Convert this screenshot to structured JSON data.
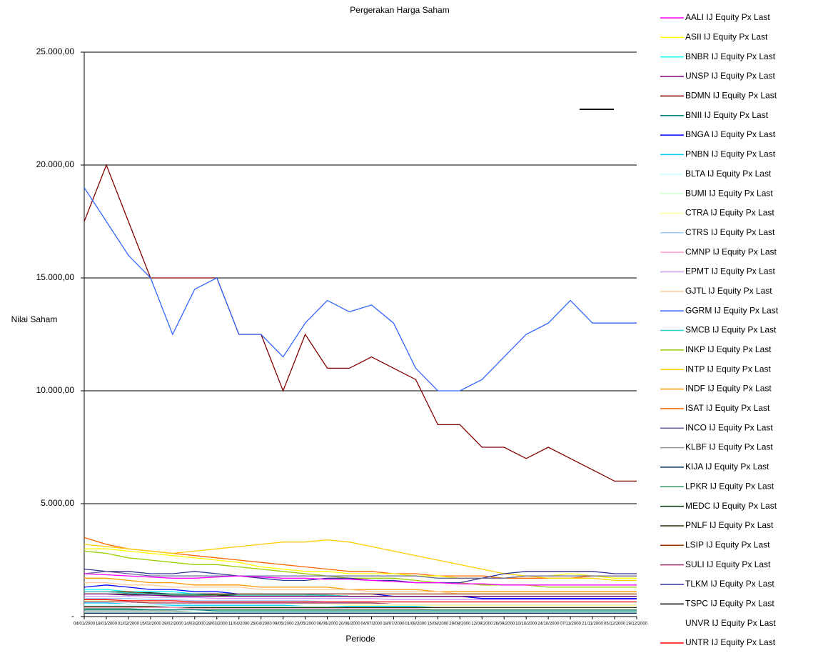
{
  "chart_data": {
    "type": "line",
    "title": "Pergerakan Harga Saham",
    "x_label": "Periode",
    "y_label": "Nilai Saham",
    "categories": [
      "04/01/2000",
      "18/01/2000",
      "01/02/2000",
      "15/02/2000",
      "29/02/2000",
      "14/03/2000",
      "28/03/2000",
      "11/04/2000",
      "25/04/2000",
      "09/05/2000",
      "23/05/2000",
      "06/06/2000",
      "20/06/2000",
      "04/07/2000",
      "18/07/2000",
      "01/08/2000",
      "15/08/2000",
      "29/08/2000",
      "12/09/2000",
      "26/09/2000",
      "10/10/2000",
      "24/10/2000",
      "07/11/2000",
      "21/11/2000",
      "05/12/2000",
      "19/12/2000"
    ],
    "ylim": [
      0,
      25000
    ],
    "yticks": [
      {
        "value": 0,
        "label": "-"
      },
      {
        "value": 5000,
        "label": "5.000,00"
      },
      {
        "value": 10000,
        "label": "10.000,00"
      },
      {
        "value": 15000,
        "label": "15.000,00"
      },
      {
        "value": 20000,
        "label": "20.000,00"
      },
      {
        "value": 25000,
        "label": "25.000,00"
      }
    ],
    "grid": true,
    "legend": "right",
    "series": [
      {
        "name": "AALI IJ Equity Px Last",
        "color": "#ff00ff",
        "values": [
          1900,
          1850,
          1800,
          1750,
          1700,
          1700,
          1750,
          1800,
          1750,
          1700,
          1700,
          1650,
          1650,
          1600,
          1550,
          1500,
          1500,
          1450,
          1450,
          1400,
          1400,
          1400,
          1400,
          1400,
          1400,
          1400
        ]
      },
      {
        "name": "ASII IJ Equity Px Last",
        "color": "#ffff00",
        "values": [
          3000,
          3000,
          2900,
          2800,
          2700,
          2600,
          2500,
          2400,
          2200,
          2100,
          2000,
          2000,
          1900,
          1900,
          1900,
          1800,
          1800,
          1700,
          1700,
          1700,
          1800,
          1800,
          1900,
          1800,
          1700,
          1700
        ]
      },
      {
        "name": "BNBR IJ Equity Px Last",
        "color": "#00ffff",
        "values": [
          1200,
          1200,
          1100,
          1100,
          1100,
          1000,
          1000,
          1000,
          1000,
          1000,
          1000,
          900,
          900,
          900,
          900,
          900,
          900,
          900,
          900,
          900,
          900,
          900,
          900,
          900,
          900,
          900
        ]
      },
      {
        "name": "UNSP IJ Equity Px Last",
        "color": "#800080",
        "values": [
          1000,
          1000,
          950,
          950,
          900,
          900,
          900,
          900,
          900,
          900,
          900,
          900,
          900,
          900,
          900,
          900,
          900,
          900,
          900,
          900,
          900,
          900,
          900,
          900,
          900,
          900
        ]
      },
      {
        "name": "BDMN IJ Equity Px Last",
        "color": "#800000",
        "values": [
          17500,
          20000,
          17500,
          15000,
          15000,
          15000,
          15000,
          12500,
          12500,
          10000,
          12500,
          11000,
          11000,
          11500,
          11000,
          10500,
          8500,
          8500,
          7500,
          7500,
          7000,
          7500,
          7000,
          6500,
          6000,
          6000
        ]
      },
      {
        "name": "BNII IJ Equity Px Last",
        "color": "#008080",
        "values": [
          300,
          300,
          300,
          300,
          300,
          300,
          250,
          250,
          250,
          250,
          250,
          250,
          250,
          250,
          250,
          250,
          250,
          250,
          250,
          250,
          250,
          250,
          250,
          250,
          250,
          250
        ]
      },
      {
        "name": "BNGA IJ Equity Px Last",
        "color": "#0000ff",
        "values": [
          1300,
          1400,
          1300,
          1200,
          1200,
          1100,
          1100,
          1000,
          1000,
          1000,
          1000,
          1000,
          1000,
          1000,
          900,
          900,
          900,
          900,
          800,
          800,
          800,
          800,
          800,
          800,
          800,
          800
        ]
      },
      {
        "name": "PNBN IJ Equity Px Last",
        "color": "#00ccff",
        "values": [
          600,
          600,
          550,
          550,
          500,
          500,
          500,
          500,
          500,
          500,
          450,
          450,
          450,
          450,
          450,
          450,
          400,
          400,
          400,
          400,
          400,
          400,
          400,
          400,
          400,
          400
        ]
      },
      {
        "name": "BLTA IJ Equity Px Last",
        "color": "#ccffff",
        "values": [
          500,
          500,
          500,
          500,
          450,
          450,
          450,
          450,
          450,
          450,
          450,
          450,
          400,
          400,
          400,
          400,
          400,
          400,
          400,
          400,
          400,
          400,
          400,
          400,
          400,
          400
        ]
      },
      {
        "name": "BUMI IJ Equity Px Last",
        "color": "#ccffcc",
        "values": [
          200,
          200,
          200,
          200,
          200,
          200,
          200,
          200,
          200,
          200,
          200,
          200,
          200,
          200,
          200,
          200,
          200,
          200,
          200,
          200,
          200,
          200,
          200,
          200,
          200,
          200
        ]
      },
      {
        "name": "CTRA IJ Equity Px Last",
        "color": "#ffff99",
        "values": [
          700,
          700,
          650,
          650,
          600,
          600,
          600,
          600,
          550,
          550,
          550,
          550,
          500,
          500,
          500,
          500,
          500,
          500,
          500,
          500,
          500,
          500,
          500,
          500,
          500,
          500
        ]
      },
      {
        "name": "CTRS IJ Equity Px Last",
        "color": "#99ccff",
        "values": [
          800,
          800,
          800,
          750,
          750,
          700,
          700,
          700,
          700,
          700,
          700,
          650,
          650,
          650,
          650,
          650,
          650,
          650,
          650,
          650,
          650,
          650,
          650,
          650,
          650,
          650
        ]
      },
      {
        "name": "CMNP IJ Equity Px Last",
        "color": "#ff99cc",
        "values": [
          400,
          400,
          400,
          400,
          400,
          350,
          350,
          350,
          350,
          350,
          350,
          350,
          350,
          350,
          350,
          350,
          300,
          300,
          300,
          300,
          300,
          300,
          300,
          300,
          300,
          300
        ]
      },
      {
        "name": "EPMT IJ Equity Px Last",
        "color": "#cc99ff",
        "values": [
          900,
          900,
          900,
          850,
          850,
          850,
          800,
          800,
          800,
          800,
          800,
          800,
          800,
          800,
          750,
          750,
          750,
          750,
          750,
          750,
          750,
          750,
          750,
          750,
          750,
          750
        ]
      },
      {
        "name": "GJTL IJ Equity Px Last",
        "color": "#ffcc99",
        "values": [
          1500,
          1500,
          1400,
          1400,
          1300,
          1300,
          1300,
          1300,
          1200,
          1200,
          1200,
          1200,
          1200,
          1100,
          1100,
          1100,
          1100,
          1000,
          1000,
          1000,
          1000,
          1000,
          1000,
          1000,
          1000,
          1000
        ]
      },
      {
        "name": "GGRM IJ Equity Px Last",
        "color": "#3366ff",
        "values": [
          19000,
          17500,
          16000,
          15000,
          12500,
          14500,
          15000,
          12500,
          12500,
          11500,
          13000,
          14000,
          13500,
          13800,
          13000,
          11000,
          10000,
          10000,
          10500,
          11500,
          12500,
          13000,
          14000,
          13000,
          13000,
          13000
        ]
      },
      {
        "name": "SMCB IJ Equity Px Last",
        "color": "#33cccc",
        "values": [
          1100,
          1100,
          1050,
          1000,
          1000,
          1000,
          950,
          950,
          950,
          950,
          950,
          950,
          900,
          900,
          900,
          900,
          900,
          900,
          900,
          900,
          900,
          900,
          900,
          900,
          900,
          900
        ]
      },
      {
        "name": "INKP IJ Equity Px Last",
        "color": "#99cc00",
        "values": [
          2900,
          2800,
          2600,
          2500,
          2400,
          2300,
          2300,
          2200,
          2100,
          2000,
          1900,
          1800,
          1700,
          1700,
          1700,
          1600,
          1500,
          1500,
          1400,
          1400,
          1400,
          1300,
          1300,
          1300,
          1300,
          1300
        ]
      },
      {
        "name": "INTP IJ Equity Px Last",
        "color": "#ffcc00",
        "values": [
          3200,
          3100,
          3000,
          2900,
          2800,
          2900,
          3000,
          3100,
          3200,
          3300,
          3300,
          3400,
          3300,
          3100,
          2900,
          2700,
          2500,
          2300,
          2100,
          1900,
          1800,
          1700,
          1700,
          1700,
          1600,
          1600
        ]
      },
      {
        "name": "INDF IJ Equity Px Last",
        "color": "#ff9900",
        "values": [
          1700,
          1700,
          1600,
          1500,
          1500,
          1400,
          1400,
          1400,
          1300,
          1300,
          1300,
          1300,
          1200,
          1200,
          1200,
          1200,
          1100,
          1100,
          1100,
          1100,
          1100,
          1100,
          1100,
          1100,
          1100,
          1100
        ]
      },
      {
        "name": "ISAT IJ Equity Px Last",
        "color": "#ff6600",
        "values": [
          3500,
          3200,
          3000,
          2900,
          2800,
          2700,
          2600,
          2500,
          2400,
          2300,
          2200,
          2100,
          2000,
          2000,
          1900,
          1900,
          1800,
          1800,
          1800,
          1700,
          1700,
          1700,
          1700,
          1800,
          1800,
          1800
        ]
      },
      {
        "name": "INCO IJ Equity Px Last",
        "color": "#666699",
        "values": [
          1900,
          2000,
          1900,
          1800,
          1800,
          1800,
          1800,
          1800,
          1800,
          1800,
          1800,
          1800,
          1800,
          1800,
          1800,
          1800,
          1700,
          1700,
          1700,
          1700,
          1800,
          1800,
          1800,
          1800,
          1800,
          1800
        ]
      },
      {
        "name": "KLBF IJ Equity Px Last",
        "color": "#969696",
        "values": [
          250,
          250,
          250,
          250,
          250,
          200,
          200,
          200,
          200,
          200,
          200,
          200,
          200,
          200,
          200,
          200,
          200,
          200,
          200,
          200,
          200,
          200,
          200,
          200,
          200,
          200
        ]
      },
      {
        "name": "KIJA IJ Equity Px Last",
        "color": "#003366",
        "values": [
          150,
          150,
          150,
          150,
          150,
          150,
          150,
          150,
          150,
          150,
          150,
          150,
          150,
          150,
          150,
          150,
          150,
          150,
          150,
          150,
          150,
          150,
          150,
          150,
          150,
          150
        ]
      },
      {
        "name": "LPKR IJ Equity Px Last",
        "color": "#339966",
        "values": [
          350,
          350,
          350,
          300,
          300,
          300,
          300,
          300,
          300,
          300,
          300,
          300,
          300,
          300,
          300,
          300,
          300,
          300,
          300,
          300,
          300,
          300,
          300,
          300,
          300,
          300
        ]
      },
      {
        "name": "MEDC IJ Equity Px Last",
        "color": "#003300",
        "values": [
          1000,
          1000,
          1000,
          950,
          950,
          950,
          950,
          900,
          900,
          900,
          900,
          900,
          900,
          900,
          900,
          900,
          900,
          900,
          900,
          900,
          900,
          900,
          900,
          900,
          900,
          900
        ]
      },
      {
        "name": "PNLF IJ Equity Px Last",
        "color": "#333300",
        "values": [
          450,
          450,
          450,
          450,
          400,
          400,
          400,
          400,
          400,
          400,
          400,
          400,
          400,
          400,
          400,
          400,
          400,
          400,
          400,
          400,
          400,
          400,
          400,
          400,
          400,
          400
        ]
      },
      {
        "name": "LSIP IJ Equity Px Last",
        "color": "#993300",
        "values": [
          1100,
          1100,
          1100,
          1000,
          1000,
          1000,
          1000,
          1000,
          1000,
          1000,
          1000,
          1000,
          1000,
          1000,
          1000,
          1000,
          1000,
          1000,
          1000,
          1000,
          1000,
          1000,
          1000,
          1000,
          1000,
          1000
        ]
      },
      {
        "name": "SULI IJ Equity Px Last",
        "color": "#993366",
        "values": [
          650,
          650,
          650,
          600,
          600,
          600,
          600,
          600,
          600,
          600,
          600,
          600,
          600,
          600,
          550,
          550,
          550,
          550,
          550,
          550,
          550,
          550,
          550,
          550,
          550,
          550
        ]
      },
      {
        "name": "TLKM IJ Equity Px Last",
        "color": "#333399",
        "values": [
          2100,
          2000,
          2000,
          1900,
          1900,
          2000,
          1900,
          1800,
          1700,
          1600,
          1600,
          1700,
          1700,
          1600,
          1600,
          1500,
          1500,
          1500,
          1700,
          1900,
          2000,
          2000,
          2000,
          2000,
          1900,
          1900
        ]
      },
      {
        "name": "TSPC IJ Equity Px Last",
        "color": "#000000",
        "values": [
          1100,
          1100,
          1050,
          1050,
          1000,
          1000,
          1000,
          950,
          950,
          950,
          950,
          950,
          900,
          900,
          900,
          900,
          900,
          900,
          900,
          900,
          900,
          900,
          900,
          900,
          900,
          900
        ]
      },
      {
        "name": "UNVR IJ Equity Px Last",
        "color": "#ffffff",
        "values": [
          550,
          550,
          550,
          550,
          550,
          550,
          550,
          550,
          550,
          550,
          550,
          550,
          550,
          550,
          550,
          550,
          550,
          550,
          550,
          550,
          550,
          550,
          550,
          550,
          550,
          550
        ]
      },
      {
        "name": "UNTR IJ Equity Px Last",
        "color": "#ff0000",
        "values": [
          750,
          750,
          700,
          700,
          700,
          650,
          650,
          650,
          650,
          650,
          650,
          650,
          650,
          650,
          650,
          650,
          650,
          650,
          650,
          650,
          650,
          650,
          650,
          650,
          650,
          650
        ]
      }
    ]
  }
}
